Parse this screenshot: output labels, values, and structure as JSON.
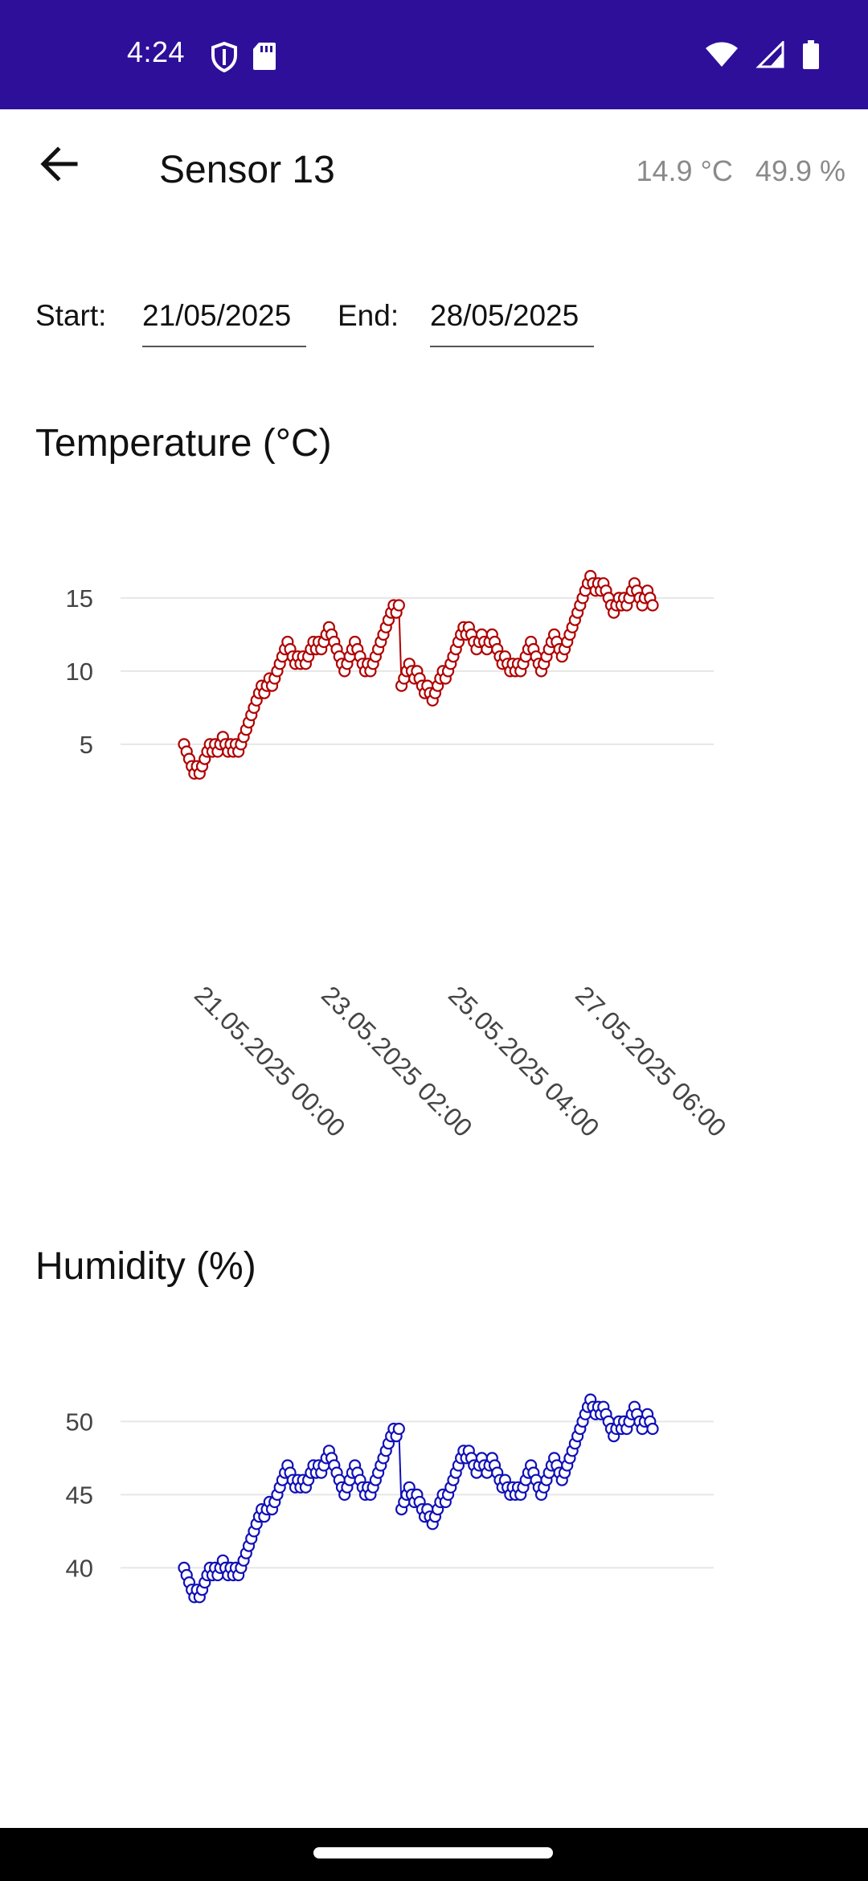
{
  "status_bar": {
    "time": "4:24",
    "left_icons": [
      "shield-icon",
      "sd-card-icon"
    ],
    "right_icons": [
      "wifi-icon",
      "cell-signal-icon",
      "battery-icon"
    ],
    "background": "#2e0f9a"
  },
  "header": {
    "title": "Sensor 13",
    "temperature_readout": "14.9 °C",
    "humidity_readout": "49.9 %"
  },
  "date_range": {
    "start_label": "Start:",
    "start_value": "21/05/2025",
    "end_label": "End:",
    "end_value": "28/05/2025"
  },
  "sections": {
    "temperature_title": "Temperature (°C)",
    "humidity_title": "Humidity (%)"
  },
  "chart_data": [
    {
      "type": "line",
      "title": "Temperature (°C)",
      "color": "#b00000",
      "ylim": [
        2,
        17
      ],
      "yticks": [
        5,
        10,
        15
      ],
      "grid": true,
      "x_tick_labels": [
        "21.05.2025 00:00",
        "23.05.2025 02:00",
        "25.05.2025 04:00",
        "27.05.2025 06:00"
      ],
      "y": [
        5,
        4.5,
        4,
        3.5,
        3,
        3.5,
        3,
        3.5,
        4,
        4.5,
        5,
        4.5,
        5,
        4.5,
        5,
        5.5,
        5,
        4.5,
        5,
        4.5,
        5,
        4.5,
        5,
        5.5,
        6,
        6.5,
        7,
        7.5,
        8,
        8.5,
        9,
        8.5,
        9,
        9.5,
        9,
        9.5,
        10,
        10.5,
        11,
        11.5,
        12,
        11.5,
        11,
        10.5,
        11,
        10.5,
        11,
        10.5,
        11,
        11.5,
        12,
        11.5,
        12,
        11.5,
        12,
        12.5,
        13,
        12.5,
        12,
        11.5,
        11,
        10.5,
        10,
        10.5,
        11,
        11.5,
        12,
        11.5,
        11,
        10.5,
        10,
        10.5,
        10,
        10.5,
        11,
        11.5,
        12,
        12.5,
        13,
        13.5,
        14,
        14.5,
        14,
        14.5,
        9,
        9.5,
        10,
        10.5,
        10,
        9.5,
        10,
        9.5,
        9,
        8.5,
        9,
        8.5,
        8,
        8.5,
        9,
        9.5,
        10,
        9.5,
        10,
        10.5,
        11,
        11.5,
        12,
        12.5,
        13,
        12.5,
        13,
        12.5,
        12,
        11.5,
        12,
        12.5,
        12,
        11.5,
        12,
        12.5,
        12,
        11.5,
        11,
        10.5,
        11,
        10.5,
        10,
        10.5,
        10,
        10.5,
        10,
        10.5,
        11,
        11.5,
        12,
        11.5,
        11,
        10.5,
        10,
        10.5,
        11,
        11.5,
        12,
        12.5,
        12,
        11.5,
        11,
        11.5,
        12,
        12.5,
        13,
        13.5,
        14,
        14.5,
        15,
        15.5,
        16,
        16.5,
        16,
        15.5,
        16,
        15.5,
        16,
        15.5,
        15,
        14.5,
        14,
        14.5,
        15,
        14.5,
        15,
        14.5,
        15,
        15.5,
        16,
        15.5,
        15,
        14.5,
        15,
        15.5,
        15,
        14.5
      ]
    },
    {
      "type": "line",
      "title": "Humidity (%)",
      "color": "#1010b8",
      "ylim": [
        37,
        52
      ],
      "yticks": [
        40,
        45,
        50
      ],
      "grid": true,
      "y": [
        40,
        39.5,
        39,
        38.5,
        38,
        38.5,
        38,
        38.5,
        39,
        39.5,
        40,
        39.5,
        40,
        39.5,
        40,
        40.5,
        40,
        39.5,
        40,
        39.5,
        40,
        39.5,
        40,
        40.5,
        41,
        41.5,
        42,
        42.5,
        43,
        43.5,
        44,
        43.5,
        44,
        44.5,
        44,
        44.5,
        45,
        45.5,
        46,
        46.5,
        47,
        46.5,
        46,
        45.5,
        46,
        45.5,
        46,
        45.5,
        46,
        46.5,
        47,
        46.5,
        47,
        46.5,
        47,
        47.5,
        48,
        47.5,
        47,
        46.5,
        46,
        45.5,
        45,
        45.5,
        46,
        46.5,
        47,
        46.5,
        46,
        45.5,
        45,
        45.5,
        45,
        45.5,
        46,
        46.5,
        47,
        47.5,
        48,
        48.5,
        49,
        49.5,
        49,
        49.5,
        44,
        44.5,
        45,
        45.5,
        45,
        44.5,
        45,
        44.5,
        44,
        43.5,
        44,
        43.5,
        43,
        43.5,
        44,
        44.5,
        45,
        44.5,
        45,
        45.5,
        46,
        46.5,
        47,
        47.5,
        48,
        47.5,
        48,
        47.5,
        47,
        46.5,
        47,
        47.5,
        47,
        46.5,
        47,
        47.5,
        47,
        46.5,
        46,
        45.5,
        46,
        45.5,
        45,
        45.5,
        45,
        45.5,
        45,
        45.5,
        46,
        46.5,
        47,
        46.5,
        46,
        45.5,
        45,
        45.5,
        46,
        46.5,
        47,
        47.5,
        47,
        46.5,
        46,
        46.5,
        47,
        47.5,
        48,
        48.5,
        49,
        49.5,
        50,
        50.5,
        51,
        51.5,
        51,
        50.5,
        51,
        50.5,
        51,
        50.5,
        50,
        49.5,
        49,
        49.5,
        50,
        49.5,
        50,
        49.5,
        50,
        50.5,
        51,
        50.5,
        50,
        49.5,
        50,
        50.5,
        50,
        49.5
      ]
    }
  ]
}
